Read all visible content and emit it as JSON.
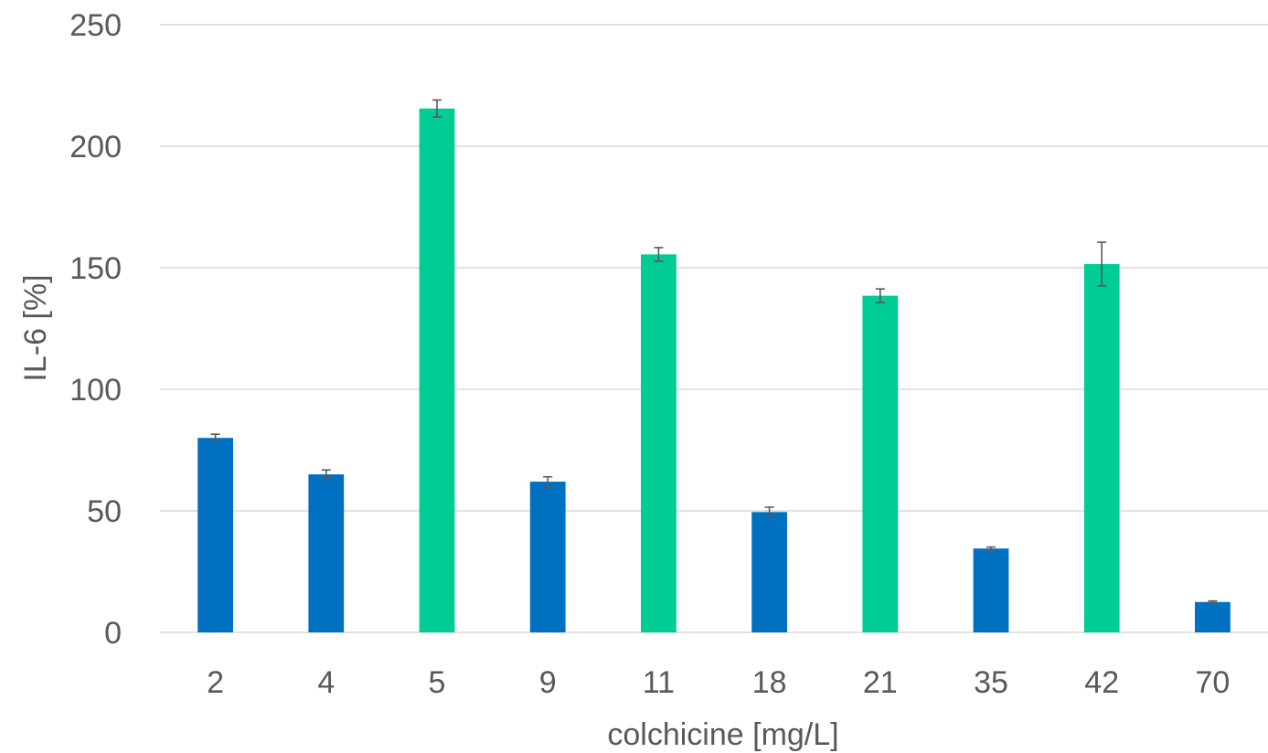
{
  "chart_data": {
    "type": "bar",
    "title": "",
    "xlabel": "colchicine [mg/L]",
    "ylabel": "IL-6 [%]",
    "ylim": [
      0,
      250
    ],
    "yticks": [
      0,
      50,
      100,
      150,
      200,
      250
    ],
    "grid": true,
    "legend": "none",
    "categories": [
      "2",
      "4",
      "5",
      "9",
      "11",
      "18",
      "21",
      "35",
      "42",
      "70"
    ],
    "values": [
      80,
      65,
      215.5,
      62,
      155.5,
      49.5,
      138.5,
      34.5,
      151.5,
      12.5
    ],
    "errors": [
      1.5,
      1.8,
      3.5,
      2,
      2.8,
      2,
      2.8,
      0.6,
      9,
      0.4
    ],
    "bar_colors": [
      "#0070c0",
      "#0070c0",
      "#00cc96",
      "#0070c0",
      "#00cc96",
      "#0070c0",
      "#00cc96",
      "#0070c0",
      "#00cc96",
      "#0070c0"
    ]
  }
}
